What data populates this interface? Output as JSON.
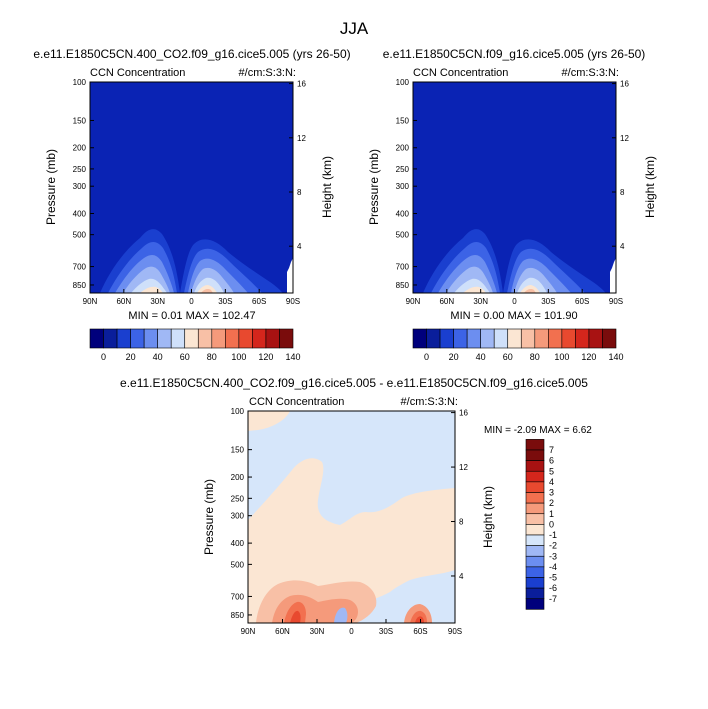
{
  "page_title": "JJA",
  "chart_data": [
    {
      "type": "heatmap",
      "panel": "top-left",
      "title": "e.e11.E1850C5CN.400_CO2.f09_g16.cice5.005 (yrs 26-50)",
      "left_label": "CCN Concentration",
      "right_label": "#/cm:S:3:N:",
      "ylabel": "Pressure (mb)",
      "ylabel_right": "Height (km)",
      "x_ticks": [
        "90N",
        "60N",
        "30N",
        "0",
        "30S",
        "60S",
        "90S"
      ],
      "y_ticks": [
        "100",
        "150",
        "200",
        "250",
        "300",
        "400",
        "500",
        "700",
        "850"
      ],
      "y_ticks_right": [
        "16",
        "12",
        "8",
        "4"
      ],
      "stats": "MIN =   0.01   MAX = 102.47",
      "colorbar_labels": [
        "0",
        "20",
        "40",
        "60",
        "80",
        "100",
        "120",
        "140"
      ]
    },
    {
      "type": "heatmap",
      "panel": "top-right",
      "title": "e.e11.E1850C5CN.f09_g16.cice5.005 (yrs 26-50)",
      "left_label": "CCN Concentration",
      "right_label": "#/cm:S:3:N:",
      "ylabel": "Pressure (mb)",
      "ylabel_right": "Height (km)",
      "x_ticks": [
        "90N",
        "60N",
        "30N",
        "0",
        "30S",
        "60S",
        "90S"
      ],
      "y_ticks": [
        "100",
        "150",
        "200",
        "250",
        "300",
        "400",
        "500",
        "700",
        "850"
      ],
      "y_ticks_right": [
        "16",
        "12",
        "8",
        "4"
      ],
      "stats": "MIN =   0.00   MAX = 101.90",
      "colorbar_labels": [
        "0",
        "20",
        "40",
        "60",
        "80",
        "100",
        "120",
        "140"
      ]
    },
    {
      "type": "heatmap",
      "panel": "bottom-difference",
      "title": "e.e11.E1850C5CN.400_CO2.f09_g16.cice5.005 - e.e11.E1850C5CN.f09_g16.cice5.005",
      "left_label": "CCN Concentration",
      "right_label": "#/cm:S:3:N:",
      "ylabel": "Pressure (mb)",
      "ylabel_right": "Height (km)",
      "x_ticks": [
        "90N",
        "60N",
        "30N",
        "0",
        "30S",
        "60S",
        "90S"
      ],
      "y_ticks": [
        "100",
        "150",
        "200",
        "250",
        "300",
        "400",
        "500",
        "700",
        "850"
      ],
      "y_ticks_right": [
        "16",
        "12",
        "8",
        "4"
      ],
      "stats": "MIN =  -2.09   MAX =   6.62",
      "colorbar_labels": [
        "7",
        "6",
        "5",
        "4",
        "3",
        "2",
        "1",
        "0",
        "-1",
        "-2",
        "-3",
        "-4",
        "-5",
        "-6",
        "-7"
      ]
    }
  ],
  "colors": {
    "background_blue": "#0a23b4",
    "abs_colorbar": [
      "#00007c",
      "#0a1e9b",
      "#1a3fcf",
      "#3c63e6",
      "#6c8ef0",
      "#a0b8f5",
      "#cfe0fa",
      "#fbe6d3",
      "#f8c0a6",
      "#f59a7b",
      "#f2704f",
      "#e8492f",
      "#d4261c",
      "#a81212",
      "#7a0c0c"
    ],
    "diff_colorbar": [
      "#7a0c0c",
      "#a81212",
      "#d4261c",
      "#e8492f",
      "#f2704f",
      "#f59a7b",
      "#f8c0a6",
      "#fbe6d3",
      "#d6e6fa",
      "#a0b8f5",
      "#6c8ef0",
      "#3c63e6",
      "#1a3fcf",
      "#0a1e9b",
      "#00007c"
    ]
  }
}
